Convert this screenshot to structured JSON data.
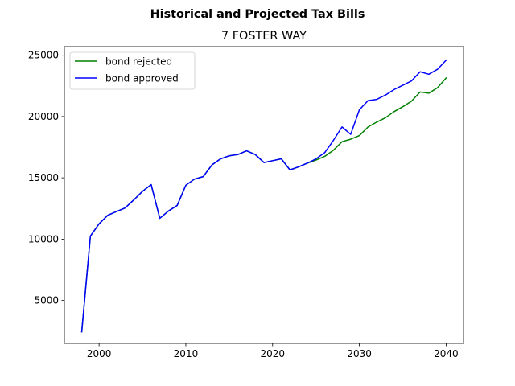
{
  "chart_data": {
    "type": "line",
    "suptitle": "Historical and Projected Tax Bills",
    "title": "7 FOSTER WAY",
    "xlabel": "",
    "ylabel": "",
    "xlim": [
      1996,
      2042
    ],
    "ylim": [
      1500,
      25700
    ],
    "xticks": [
      2000,
      2010,
      2020,
      2030,
      2040
    ],
    "yticks": [
      5000,
      10000,
      15000,
      20000,
      25000
    ],
    "grid": false,
    "legend_position": "upper left",
    "series": [
      {
        "name": "bond rejected",
        "color": "#008000",
        "points": [
          [
            1998,
            2450
          ],
          [
            1999,
            10250
          ],
          [
            2000,
            11250
          ],
          [
            2001,
            11950
          ],
          [
            2002,
            12250
          ],
          [
            2003,
            12550
          ],
          [
            2004,
            13200
          ],
          [
            2005,
            13900
          ],
          [
            2006,
            14450
          ],
          [
            2007,
            11700
          ],
          [
            2008,
            12300
          ],
          [
            2009,
            12750
          ],
          [
            2010,
            14400
          ],
          [
            2011,
            14900
          ],
          [
            2012,
            15100
          ],
          [
            2013,
            16050
          ],
          [
            2014,
            16550
          ],
          [
            2015,
            16800
          ],
          [
            2016,
            16900
          ],
          [
            2017,
            17200
          ],
          [
            2018,
            16900
          ],
          [
            2019,
            16250
          ],
          [
            2020,
            16400
          ],
          [
            2021,
            16550
          ],
          [
            2022,
            15650
          ],
          [
            2023,
            15900
          ],
          [
            2024,
            16200
          ],
          [
            2025,
            16450
          ],
          [
            2026,
            16750
          ],
          [
            2027,
            17250
          ],
          [
            2028,
            17950
          ],
          [
            2029,
            18150
          ],
          [
            2030,
            18450
          ],
          [
            2031,
            19150
          ],
          [
            2032,
            19550
          ],
          [
            2033,
            19900
          ],
          [
            2034,
            20400
          ],
          [
            2035,
            20800
          ],
          [
            2036,
            21250
          ],
          [
            2037,
            22000
          ],
          [
            2038,
            21900
          ],
          [
            2039,
            22350
          ],
          [
            2040,
            23150
          ]
        ]
      },
      {
        "name": "bond approved",
        "color": "#0000ff",
        "points": [
          [
            1998,
            2450
          ],
          [
            1999,
            10250
          ],
          [
            2000,
            11250
          ],
          [
            2001,
            11950
          ],
          [
            2002,
            12250
          ],
          [
            2003,
            12550
          ],
          [
            2004,
            13200
          ],
          [
            2005,
            13900
          ],
          [
            2006,
            14450
          ],
          [
            2007,
            11700
          ],
          [
            2008,
            12300
          ],
          [
            2009,
            12750
          ],
          [
            2010,
            14400
          ],
          [
            2011,
            14900
          ],
          [
            2012,
            15100
          ],
          [
            2013,
            16050
          ],
          [
            2014,
            16550
          ],
          [
            2015,
            16800
          ],
          [
            2016,
            16900
          ],
          [
            2017,
            17200
          ],
          [
            2018,
            16900
          ],
          [
            2019,
            16250
          ],
          [
            2020,
            16400
          ],
          [
            2021,
            16550
          ],
          [
            2022,
            15650
          ],
          [
            2023,
            15900
          ],
          [
            2024,
            16200
          ],
          [
            2025,
            16550
          ],
          [
            2026,
            17050
          ],
          [
            2027,
            18050
          ],
          [
            2028,
            19150
          ],
          [
            2029,
            18550
          ],
          [
            2030,
            20550
          ],
          [
            2031,
            21300
          ],
          [
            2032,
            21400
          ],
          [
            2033,
            21750
          ],
          [
            2034,
            22200
          ],
          [
            2035,
            22550
          ],
          [
            2036,
            22900
          ],
          [
            2037,
            23650
          ],
          [
            2038,
            23450
          ],
          [
            2039,
            23850
          ],
          [
            2040,
            24600
          ]
        ]
      }
    ]
  }
}
